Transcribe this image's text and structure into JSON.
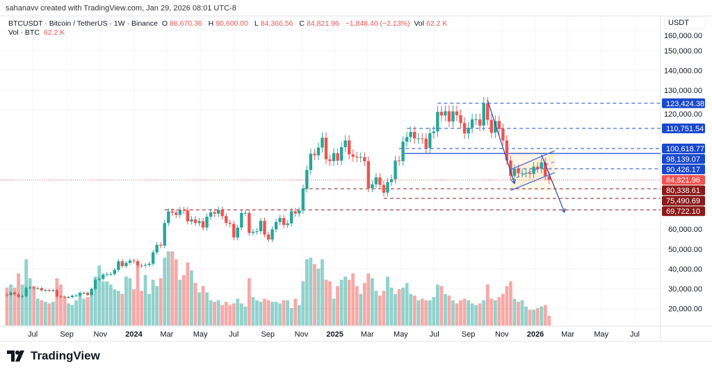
{
  "credit": "sahanavv created with TradingView.com, Jan 29, 2026 08:01 UTC-8",
  "legend": {
    "symbol": "BTCUSDT · Bitcoin / TetherUS · 1W · Binance",
    "o_label": "O",
    "o": "86,670.36",
    "h_label": "H",
    "h": "90,600.00",
    "l_label": "L",
    "l": "84,366.56",
    "c_label": "C",
    "c": "84,821.96",
    "change": "−1,848.40 (−2.13%)",
    "vol_label": "Vol",
    "vol": "62.2 K",
    "vol_line_label": "Vol · BTC",
    "vol_line_value": "62.2 K"
  },
  "currency": "USDT",
  "brand": "TradingView",
  "colors": {
    "up": "#26a69a",
    "down": "#ef5350",
    "drawing_blue": "#1848cc",
    "support_red": "#8b1a1a",
    "current": "#f05350",
    "channel_fill": "#fdf0d5"
  },
  "chart_data": {
    "type": "candlestick",
    "symbol": "BTCUSDT",
    "interval": "1W",
    "first_week": "2023-05-15",
    "first_open": 27000,
    "close": [
      26800,
      28100,
      27200,
      25900,
      26300,
      30500,
      30600,
      30200,
      30300,
      29200,
      29300,
      29000,
      29300,
      26100,
      26000,
      25800,
      25800,
      26500,
      26600,
      27900,
      27900,
      26900,
      29900,
      34500,
      35000,
      37100,
      37400,
      37400,
      39500,
      43800,
      41400,
      43000,
      44200,
      43900,
      41700,
      41600,
      42000,
      42600,
      48300,
      52100,
      51700,
      63100,
      68900,
      68300,
      67200,
      69600,
      69400,
      63900,
      64900,
      63100,
      64000,
      60800,
      66300,
      68500,
      67800,
      69600,
      66600,
      63200,
      62700,
      55800,
      60800,
      68200,
      68200,
      58100,
      58700,
      59000,
      64200,
      57300,
      54800,
      59900,
      63600,
      65600,
      62100,
      62900,
      69000,
      67900,
      69400,
      80400,
      89800,
      98000,
      97200,
      101100,
      106100,
      95200,
      94300,
      98300,
      94500,
      101300,
      104700,
      97700,
      96500,
      96100,
      96300,
      94200,
      80700,
      82600,
      86100,
      82300,
      78400,
      83700,
      85200,
      94600,
      94300,
      104100,
      106400,
      109000,
      105700,
      105700,
      105600,
      100900,
      108400,
      109200,
      119100,
      117300,
      119400,
      114200,
      119300,
      117400,
      113500,
      108200,
      111100,
      115300,
      115300,
      112200,
      123500,
      115100,
      108600,
      114500,
      110500,
      104700,
      94600,
      86800,
      90400,
      88200,
      88200,
      88400,
      87800,
      91500,
      90500,
      93600,
      86670,
      84822
    ],
    "volume_k_btc": [
      240,
      260,
      240,
      330,
      260,
      420,
      300,
      250,
      170,
      160,
      150,
      140,
      150,
      300,
      260,
      180,
      140,
      130,
      160,
      200,
      170,
      180,
      210,
      310,
      380,
      280,
      280,
      260,
      230,
      220,
      200,
      310,
      300,
      230,
      380,
      220,
      320,
      200,
      290,
      250,
      300,
      430,
      470,
      470,
      420,
      290,
      320,
      400,
      350,
      270,
      210,
      250,
      210,
      160,
      150,
      160,
      130,
      150,
      130,
      140,
      170,
      140,
      120,
      300,
      180,
      160,
      150,
      170,
      160,
      150,
      150,
      140,
      160,
      160,
      110,
      170,
      130,
      280,
      420,
      430,
      390,
      360,
      420,
      290,
      280,
      170,
      250,
      290,
      310,
      290,
      330,
      250,
      200,
      270,
      330,
      300,
      220,
      190,
      220,
      310,
      240,
      200,
      230,
      240,
      270,
      200,
      190,
      160,
      170,
      160,
      160,
      180,
      260,
      250,
      200,
      190,
      160,
      140,
      160,
      170,
      160,
      140,
      130,
      140,
      160,
      260,
      170,
      160,
      180,
      200,
      250,
      280,
      170,
      150,
      160,
      120,
      100,
      100,
      110,
      120,
      130,
      62.2
    ],
    "y_axis": {
      "ticks": [
        160000,
        150000,
        140000,
        130000,
        120000,
        60000,
        50000,
        40000,
        30000,
        20000
      ],
      "tick_labels": [
        "160,000.00",
        "150,000.00",
        "140,000.00",
        "130,000.00",
        "120,000.00",
        "60,000.00",
        "50,000.00",
        "40,000.00",
        "30,000.00",
        "20,000.00"
      ]
    },
    "x_axis": {
      "ticks": [
        {
          "date": "2023-07-01",
          "label": "Jul",
          "bold": false
        },
        {
          "date": "2023-09-01",
          "label": "Sep",
          "bold": false
        },
        {
          "date": "2023-11-01",
          "label": "Nov",
          "bold": false
        },
        {
          "date": "2024-01-01",
          "label": "2024",
          "bold": true
        },
        {
          "date": "2024-03-01",
          "label": "Mar",
          "bold": false
        },
        {
          "date": "2024-05-01",
          "label": "May",
          "bold": false
        },
        {
          "date": "2024-07-01",
          "label": "Jul",
          "bold": false
        },
        {
          "date": "2024-09-01",
          "label": "Sep",
          "bold": false
        },
        {
          "date": "2024-11-01",
          "label": "Nov",
          "bold": false
        },
        {
          "date": "2025-01-01",
          "label": "2025",
          "bold": true
        },
        {
          "date": "2025-03-01",
          "label": "Mar",
          "bold": false
        },
        {
          "date": "2025-05-01",
          "label": "May",
          "bold": false
        },
        {
          "date": "2025-07-01",
          "label": "Jul",
          "bold": false
        },
        {
          "date": "2025-09-01",
          "label": "Sep",
          "bold": false
        },
        {
          "date": "2025-11-01",
          "label": "Nov",
          "bold": false
        },
        {
          "date": "2026-01-01",
          "label": "2026",
          "bold": true
        },
        {
          "date": "2026-03-01",
          "label": "Mar",
          "bold": false
        },
        {
          "date": "2026-05-01",
          "label": "May",
          "bold": false
        },
        {
          "date": "2026-07-01",
          "label": "Jul",
          "bold": false
        }
      ]
    },
    "levels": [
      {
        "price": 123424.38,
        "label": "123,424.38",
        "style": "dashed",
        "color": "blue",
        "from": "2025-07-07"
      },
      {
        "price": 110751.54,
        "label": "110,751.54",
        "style": "dashed",
        "color": "blue",
        "from": "2025-05-12"
      },
      {
        "price": 100618.77,
        "label": "100,618.77",
        "style": "dashed",
        "color": "blue",
        "from": "2025-04-28"
      },
      {
        "price": 98139.07,
        "label": "98,139.07",
        "style": "solid",
        "color": "blue",
        "from": "2025-05-05"
      },
      {
        "price": 90426.17,
        "label": "90,426.17",
        "style": "dashed",
        "color": "blue",
        "from": "2025-11-17"
      },
      {
        "price": 84821.96,
        "label": "84,821.96",
        "style": "dotted",
        "color": "current",
        "from": "2023-05-15"
      },
      {
        "price": 80338.61,
        "label": "80,338.61",
        "style": "dashed",
        "color": "red",
        "from": "2024-11-04"
      },
      {
        "price": 75490.69,
        "label": "75,490.69",
        "style": "dashed",
        "color": "red",
        "from": "2025-03-31"
      },
      {
        "price": 69722.1,
        "label": "69,722.10",
        "style": "dashed",
        "color": "red",
        "from": "2024-02-26"
      }
    ],
    "channel": {
      "start": "2025-11-17",
      "end": "2026-01-26",
      "upper": [
        90000,
        99500
      ],
      "lower": [
        79500,
        88500
      ]
    },
    "arrows": [
      {
        "from": [
          "2025-10-06",
          125000
        ],
        "to": [
          "2025-11-24",
          83000
        ]
      },
      {
        "from": [
          "2026-01-12",
          97500
        ],
        "to": [
          "2026-02-23",
          68500
        ]
      }
    ]
  }
}
